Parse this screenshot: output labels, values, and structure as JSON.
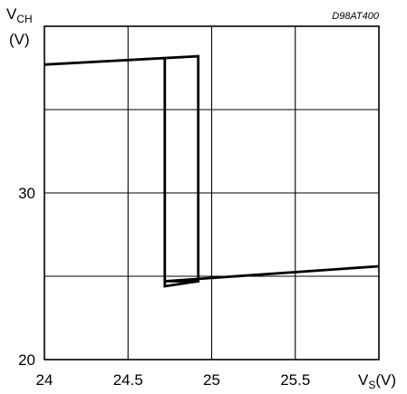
{
  "chart_data": {
    "type": "line",
    "title": "",
    "figure_code": "D98AT400",
    "ylabel": {
      "main": "V",
      "sub": "CH",
      "unit": "(V)"
    },
    "xlabel": {
      "main": "V",
      "sub": "S",
      "unit": "(V)"
    },
    "xlim": [
      24,
      26
    ],
    "ylim": [
      20,
      40
    ],
    "x_ticks": [
      {
        "value": 24,
        "label": "24"
      },
      {
        "value": 24.5,
        "label": "24.5"
      },
      {
        "value": 25,
        "label": "25"
      },
      {
        "value": 25.5,
        "label": "25.5"
      }
    ],
    "y_ticks": [
      {
        "value": 20,
        "label": "20"
      },
      {
        "value": 30,
        "label": "30"
      }
    ],
    "grid": true,
    "series": [
      {
        "x": [
          24.0,
          24.92,
          24.92,
          24.72,
          26.0
        ],
        "y": [
          37.7,
          38.2,
          24.7,
          24.7,
          25.6
        ]
      },
      {
        "x": [
          24.72,
          24.72,
          24.92
        ],
        "y": [
          38.1,
          24.4,
          24.7
        ]
      }
    ],
    "color": "#000000"
  }
}
